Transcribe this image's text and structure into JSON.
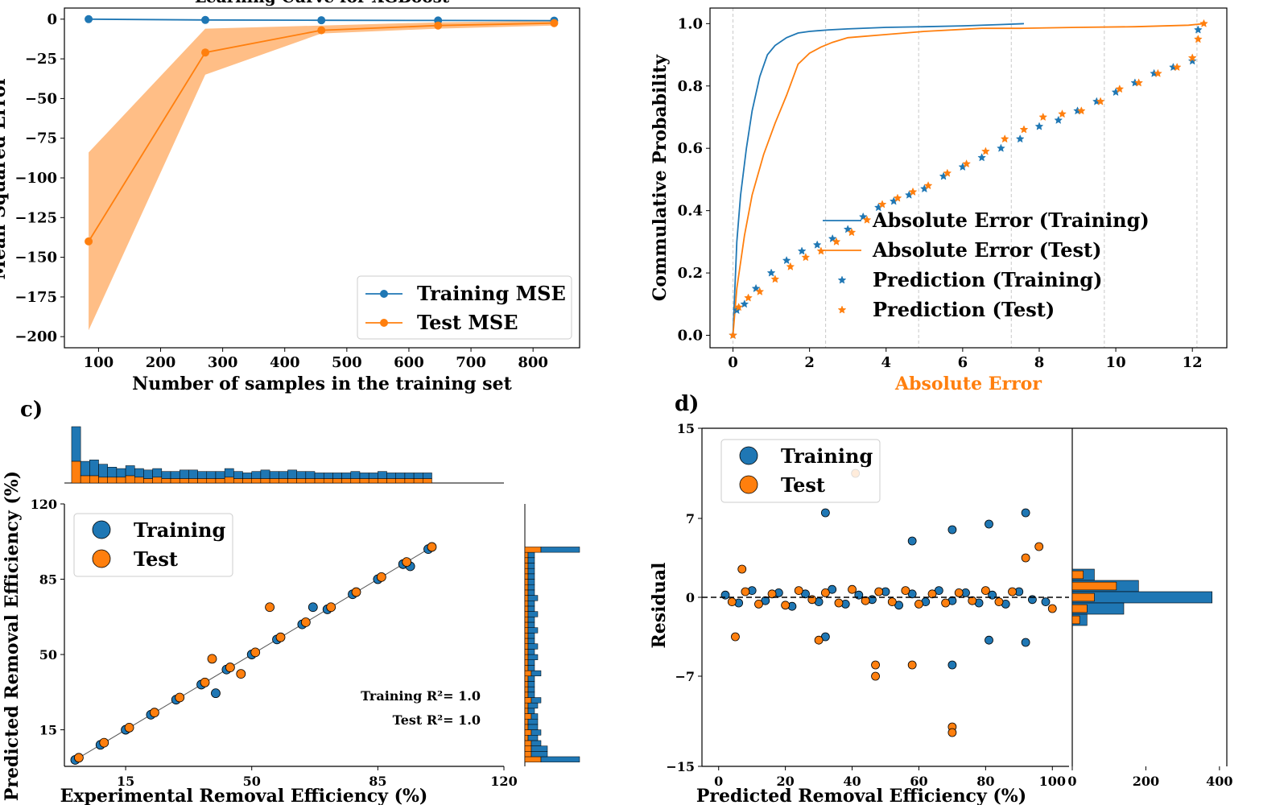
{
  "colors": {
    "training": "#1f77b4",
    "test": "#ff7f0e",
    "band": "#ffbe86",
    "axis": "#000000",
    "grid": "#c8c8c8"
  },
  "panel_labels": {
    "c": "c)",
    "d": "d)"
  },
  "chart_data": [
    {
      "id": "a",
      "type": "line",
      "title": "Learning Curve for XGBoost",
      "xlabel": "Number of samples in the training set",
      "ylabel": "Mean Squared Error",
      "xlim": [
        45,
        875
      ],
      "ylim": [
        -207,
        7
      ],
      "x_ticks": [
        100,
        200,
        300,
        400,
        500,
        600,
        700,
        800
      ],
      "y_ticks": [
        0,
        -25,
        -50,
        -75,
        -100,
        -125,
        -150,
        -175,
        -200
      ],
      "x": [
        84,
        272,
        459,
        647,
        834
      ],
      "series": [
        {
          "name": "Training MSE",
          "values": [
            0,
            -0.5,
            -0.7,
            -0.8,
            -0.9
          ]
        },
        {
          "name": "Test MSE",
          "values": [
            -140,
            -21,
            -7,
            -4,
            -2.5
          ],
          "band_low": [
            -196,
            -35,
            -9,
            -6,
            -4
          ],
          "band_high": [
            -84,
            -6,
            -4,
            -2,
            -1
          ]
        }
      ],
      "legend_position": "lower-right"
    },
    {
      "id": "b",
      "type": "line",
      "xlabel": "Absolute Error",
      "ylabel": "Commulative Probability",
      "xlim": [
        -0.6,
        12.9
      ],
      "ylim": [
        -0.04,
        1.05
      ],
      "x_ticks": [
        0,
        2,
        4,
        6,
        8,
        10,
        12
      ],
      "y_ticks": [
        0.0,
        0.2,
        0.4,
        0.6,
        0.8,
        1.0
      ],
      "grid": "vertical dashed",
      "series": [
        {
          "name": "Absolute Error (Training)",
          "kind": "line",
          "x": [
            0,
            0.1,
            0.2,
            0.35,
            0.5,
            0.7,
            0.9,
            1.1,
            1.4,
            1.7,
            2.0,
            2.5,
            3.0,
            4.0,
            5.0,
            6.0,
            7.0,
            7.6
          ],
          "y": [
            0,
            0.3,
            0.45,
            0.6,
            0.72,
            0.83,
            0.9,
            0.93,
            0.955,
            0.97,
            0.975,
            0.98,
            0.983,
            0.988,
            0.99,
            0.993,
            0.997,
            1.0
          ]
        },
        {
          "name": "Absolute Error (Test)",
          "kind": "line",
          "x": [
            0,
            0.1,
            0.3,
            0.5,
            0.8,
            1.1,
            1.4,
            1.7,
            2.0,
            2.3,
            2.6,
            3.0,
            4.0,
            5.0,
            6.5,
            7.5,
            9.0,
            10.5,
            11.9,
            12.3
          ],
          "y": [
            0,
            0.15,
            0.32,
            0.45,
            0.58,
            0.68,
            0.77,
            0.87,
            0.905,
            0.925,
            0.94,
            0.955,
            0.965,
            0.975,
            0.985,
            0.985,
            0.988,
            0.99,
            0.995,
            1.0
          ]
        },
        {
          "name": "Prediction (Training)",
          "kind": "points",
          "x": [
            0,
            0.1,
            0.3,
            0.6,
            1.0,
            1.4,
            1.8,
            2.2,
            2.6,
            3.0,
            3.4,
            3.8,
            4.2,
            4.6,
            5.0,
            5.5,
            6.0,
            6.5,
            7.0,
            7.5,
            8.0,
            8.5,
            9.0,
            9.5,
            10.0,
            10.5,
            11.0,
            11.5,
            12.0,
            12.15
          ],
          "y": [
            0,
            0.08,
            0.1,
            0.15,
            0.2,
            0.24,
            0.27,
            0.29,
            0.31,
            0.34,
            0.38,
            0.41,
            0.43,
            0.45,
            0.47,
            0.51,
            0.54,
            0.57,
            0.6,
            0.63,
            0.67,
            0.69,
            0.72,
            0.75,
            0.78,
            0.81,
            0.84,
            0.86,
            0.88,
            0.98
          ]
        },
        {
          "name": "Prediction (Test)",
          "kind": "points",
          "x": [
            0,
            0.15,
            0.4,
            0.7,
            1.1,
            1.5,
            1.9,
            2.3,
            2.7,
            3.1,
            3.5,
            3.9,
            4.3,
            4.7,
            5.1,
            5.6,
            6.1,
            6.6,
            7.1,
            7.6,
            8.1,
            8.6,
            9.1,
            9.6,
            10.1,
            10.6,
            11.1,
            11.6,
            12.0,
            12.15,
            12.3
          ],
          "y": [
            0,
            0.09,
            0.12,
            0.14,
            0.18,
            0.22,
            0.25,
            0.27,
            0.3,
            0.33,
            0.37,
            0.42,
            0.44,
            0.46,
            0.48,
            0.52,
            0.55,
            0.59,
            0.63,
            0.66,
            0.7,
            0.71,
            0.72,
            0.75,
            0.79,
            0.81,
            0.84,
            0.86,
            0.89,
            0.95,
            1.0
          ]
        }
      ],
      "legend_position": "lower-right"
    },
    {
      "id": "c",
      "type": "scatter",
      "xlabel": "Experimental Removal Efficiency (%)",
      "ylabel": "Predicted Removal Efficiency (%)",
      "xlim": [
        -2,
        120
      ],
      "ylim": [
        -2,
        120
      ],
      "x_ticks": [
        15,
        50,
        85,
        120
      ],
      "y_ticks": [
        15,
        50,
        85,
        120
      ],
      "annotations": [
        "Training R²= 1.0",
        "Test R²= 1.0"
      ],
      "series": [
        {
          "name": "Training",
          "x": [
            1,
            8,
            15,
            22,
            29,
            36,
            43,
            50,
            57,
            64,
            71,
            78,
            85,
            92,
            99,
            40,
            67,
            94
          ],
          "y": [
            1,
            8,
            15,
            22,
            29,
            36,
            43,
            50,
            57,
            64,
            71,
            78,
            85,
            92,
            99,
            32,
            72,
            91
          ]
        },
        {
          "name": "Test",
          "x": [
            2,
            9,
            16,
            23,
            30,
            37,
            44,
            51,
            58,
            65,
            72,
            79,
            86,
            93,
            100,
            55,
            39,
            47
          ],
          "y": [
            2,
            9,
            16,
            23,
            30,
            37,
            44,
            51,
            58,
            65,
            72,
            79,
            86,
            93,
            100,
            72,
            48,
            41
          ]
        }
      ],
      "top_histogram": {
        "bins": 40,
        "training_counts": [
          24,
          10,
          11,
          9,
          7,
          6,
          7,
          6,
          6,
          6,
          5,
          5,
          6,
          6,
          5,
          5,
          5,
          6,
          5,
          4,
          5,
          6,
          5,
          5,
          6,
          5,
          5,
          4,
          4,
          4,
          4,
          5,
          4,
          4,
          5,
          4,
          4,
          4,
          4,
          4
        ],
        "test_counts": [
          15,
          5,
          5,
          4,
          4,
          4,
          5,
          4,
          3,
          4,
          3,
          3,
          3,
          3,
          3,
          3,
          3,
          4,
          3,
          3,
          3,
          3,
          3,
          3,
          3,
          3,
          3,
          3,
          3,
          3,
          3,
          3,
          3,
          3,
          3,
          3,
          3,
          3,
          3,
          3
        ]
      },
      "right_histogram": {
        "bins": 40,
        "training_counts": [
          12,
          5,
          5,
          3,
          3,
          3,
          3,
          3,
          2,
          2,
          3,
          3,
          2,
          2,
          2,
          2,
          3,
          2,
          2,
          3,
          2,
          3,
          2,
          2,
          3,
          2,
          2,
          3,
          2,
          2,
          3,
          2,
          2,
          2,
          2,
          2,
          2,
          2,
          2,
          12
        ],
        "test_counts": [
          5,
          2,
          2,
          2,
          1,
          2,
          1,
          1,
          2,
          1,
          1,
          2,
          1,
          1,
          1,
          1,
          2,
          1,
          1,
          1,
          1,
          1,
          1,
          1,
          1,
          1,
          1,
          1,
          1,
          1,
          1,
          1,
          1,
          1,
          1,
          1,
          1,
          1,
          1,
          5
        ]
      },
      "legend_position": "upper-left"
    },
    {
      "id": "d",
      "type": "scatter",
      "xlabel": "Predicted Removal Efficiency (%)",
      "ylabel": "Residual",
      "xlim": [
        -5,
        105
      ],
      "ylim": [
        -15,
        15
      ],
      "x_ticks": [
        0,
        20,
        40,
        60,
        80,
        100
      ],
      "y_ticks": [
        15,
        7,
        0,
        -7,
        -15
      ],
      "series": [
        {
          "name": "Training",
          "x": [
            2,
            6,
            10,
            14,
            18,
            22,
            26,
            30,
            34,
            38,
            42,
            46,
            50,
            54,
            58,
            62,
            66,
            70,
            74,
            78,
            82,
            86,
            90,
            94,
            98,
            32,
            70,
            92,
            58,
            81,
            32,
            70,
            81,
            92
          ],
          "y": [
            0.2,
            -0.5,
            0.6,
            -0.3,
            0.4,
            -0.8,
            0.3,
            -0.4,
            0.7,
            -0.6,
            0.2,
            -0.2,
            0.5,
            -0.7,
            0.3,
            -0.4,
            0.6,
            -0.3,
            0.4,
            -0.5,
            0.2,
            -0.6,
            0.5,
            -0.2,
            -0.4,
            7.5,
            6,
            7.5,
            5,
            6.5,
            -3.5,
            -6,
            -3.8,
            -4
          ]
        },
        {
          "name": "Test",
          "x": [
            4,
            8,
            12,
            16,
            20,
            24,
            28,
            32,
            36,
            40,
            44,
            48,
            52,
            56,
            60,
            64,
            68,
            72,
            76,
            80,
            84,
            88,
            92,
            96,
            100,
            7,
            47,
            47,
            70,
            70,
            5,
            30,
            58,
            41
          ],
          "y": [
            -0.4,
            0.5,
            -0.6,
            0.3,
            -0.7,
            0.6,
            -0.2,
            0.4,
            -0.5,
            0.7,
            -0.3,
            0.5,
            -0.4,
            0.6,
            -0.6,
            0.3,
            -0.5,
            0.4,
            -0.3,
            0.6,
            -0.4,
            0.5,
            3.5,
            4.5,
            -1,
            2.5,
            -6,
            -7,
            -11.5,
            -12,
            -3.5,
            -3.8,
            -6,
            11
          ]
        }
      ],
      "right_histogram": {
        "x_ticks": [
          0,
          200,
          400
        ],
        "xlim": [
          0,
          420
        ],
        "centers": [
          2,
          1,
          0,
          -1,
          -2
        ],
        "training_counts": [
          60,
          180,
          380,
          140,
          40
        ],
        "test_counts": [
          30,
          120,
          60,
          40,
          20
        ]
      },
      "legend_position": "upper-left"
    }
  ]
}
